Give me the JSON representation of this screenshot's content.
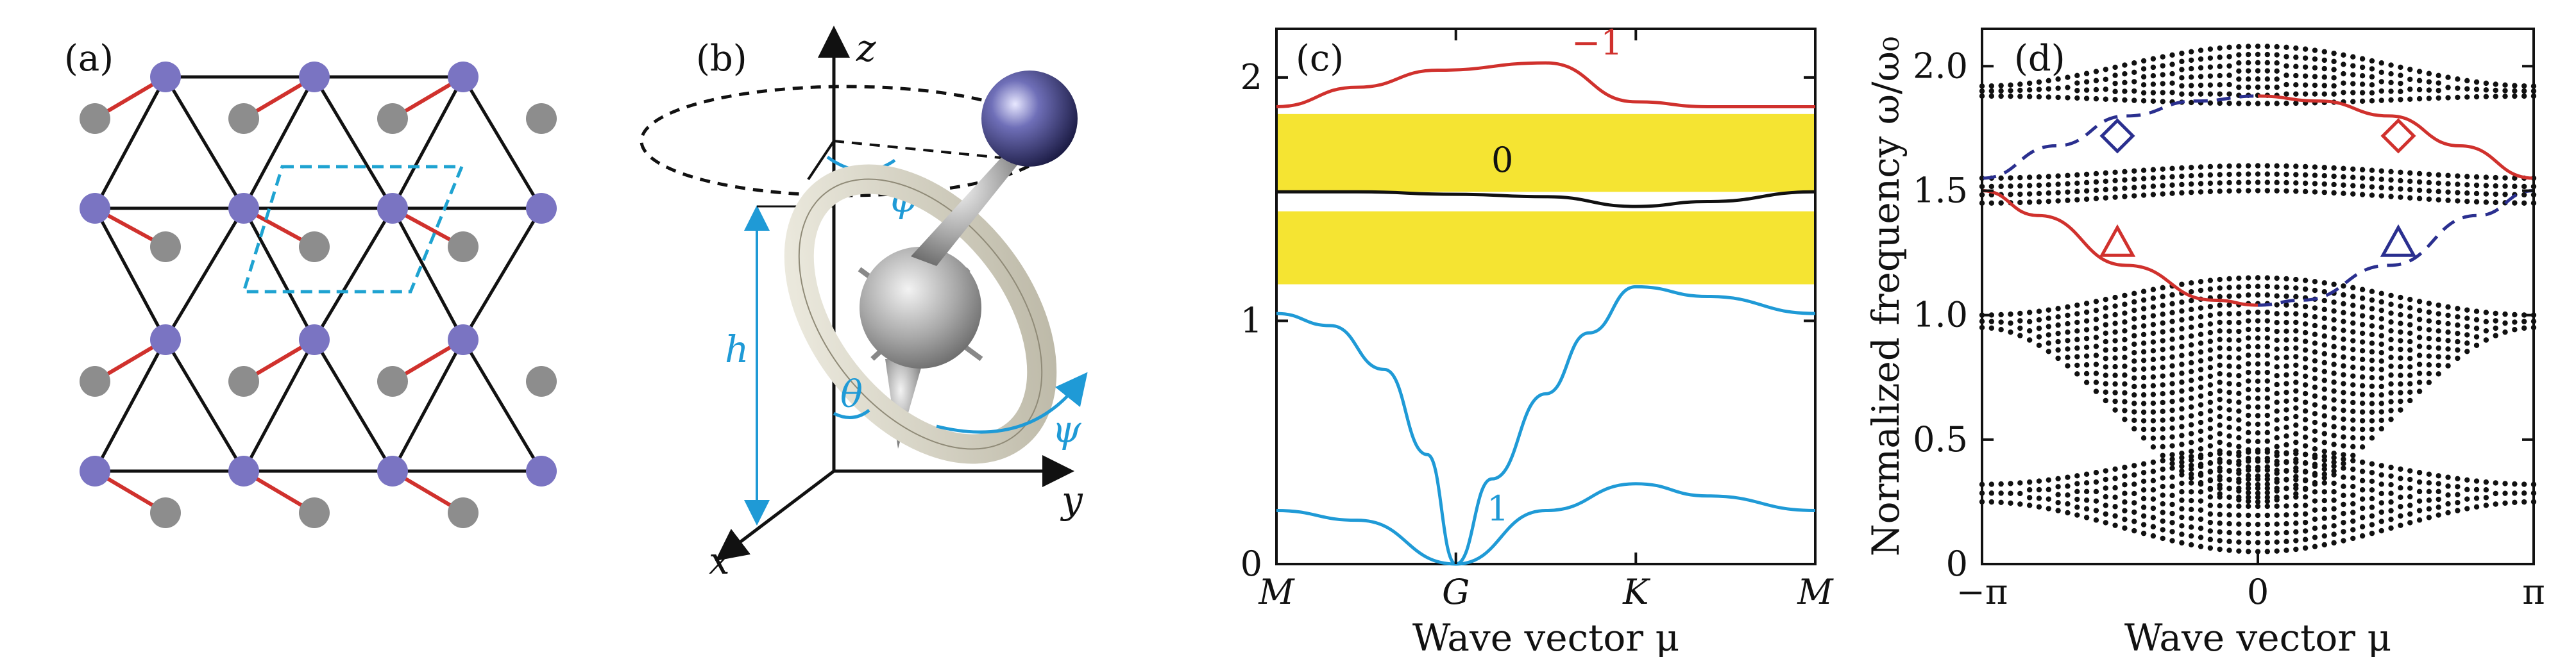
{
  "panels": {
    "a": {
      "label": "(a)"
    },
    "b": {
      "label": "(b)",
      "axis_labels": {
        "z": "z",
        "y": "y",
        "x": "x"
      },
      "angle_labels": {
        "phi": "ϕ",
        "theta": "θ",
        "psi": "ψ"
      },
      "height_label": "h"
    },
    "c": {
      "label": "(c)"
    },
    "d": {
      "label": "(d)"
    }
  },
  "chart_data": [
    {
      "type": "line",
      "panel": "c",
      "xlabel": "Wave vector μ",
      "ylabel": "",
      "x_tick_labels": [
        "M",
        "G",
        "K",
        "M"
      ],
      "y_ticks": [
        0,
        1,
        2
      ],
      "ylim": [
        0,
        2.2
      ],
      "gap_bands": [
        [
          1.15,
          1.45
        ],
        [
          1.53,
          1.85
        ]
      ],
      "colors": {
        "gap": "#f5e432",
        "chern_neg1": "#d0312d",
        "chern_0": "#111111",
        "chern_1": "#1f9ad6"
      },
      "curve_labels": [
        "−1",
        "0",
        "1"
      ],
      "series": [
        {
          "name": "−1",
          "x": [
            0,
            0.15,
            0.3,
            0.5,
            0.667,
            0.8,
            1.0
          ],
          "values": [
            1.88,
            1.96,
            2.03,
            2.06,
            1.9,
            1.88,
            1.88
          ]
        },
        {
          "name": "0",
          "x": [
            0,
            0.15,
            0.333,
            0.5,
            0.667,
            0.8,
            1.0
          ],
          "values": [
            1.53,
            1.53,
            1.52,
            1.51,
            1.47,
            1.49,
            1.53
          ]
        },
        {
          "name": "1",
          "x": [
            0,
            0.1,
            0.2,
            0.28,
            0.333,
            0.4,
            0.5,
            0.58,
            0.667,
            0.8,
            1.0
          ],
          "values": [
            1.03,
            0.98,
            0.8,
            0.45,
            0.0,
            0.35,
            0.7,
            0.95,
            1.14,
            1.1,
            1.03
          ]
        },
        {
          "values_note": "",
          "x": [
            0,
            0.15,
            0.333,
            0.5,
            0.667,
            0.8,
            1.0
          ],
          "values": [
            0.22,
            0.18,
            0.0,
            0.22,
            0.33,
            0.28,
            0.22
          ]
        }
      ]
    },
    {
      "type": "scatter",
      "panel": "d",
      "xlabel": "Wave vector μ",
      "ylabel": "Normalized frequency ω/ω₀",
      "x_tick_labels": [
        "−π",
        "0",
        "π"
      ],
      "y_ticks": [
        0,
        0.5,
        1.0,
        1.5,
        2.0
      ],
      "y_tick_labels": [
        "0",
        "0.5",
        "1.0",
        "1.5",
        "2.0"
      ],
      "ylim": [
        0,
        2.15
      ],
      "bulk_bands": [
        {
          "lower_edge": [
            0.25,
            0.05,
            0.25
          ],
          "upper_edge": [
            0.32,
            0.45,
            0.32
          ]
        },
        {
          "lower_edge": [
            0.95,
            0.25,
            0.95
          ],
          "upper_edge": [
            1.0,
            1.15,
            1.0
          ]
        },
        {
          "lower_edge": [
            1.45,
            1.5,
            1.45
          ],
          "upper_edge": [
            1.55,
            1.6,
            1.55
          ]
        },
        {
          "lower_edge": [
            1.88,
            1.85,
            1.88
          ],
          "upper_edge": [
            1.92,
            2.08,
            1.92
          ]
        }
      ],
      "edge_states": [
        {
          "style": "solid",
          "color": "#d0312d",
          "x": [
            -3.1416,
            -2.5,
            -1.5,
            -0.5,
            0
          ],
          "values": [
            1.5,
            1.4,
            1.2,
            1.06,
            1.04
          ]
        },
        {
          "style": "solid",
          "color": "#d0312d",
          "x": [
            0,
            0.7,
            1.5,
            2.3,
            3.1416
          ],
          "values": [
            1.88,
            1.86,
            1.8,
            1.68,
            1.55
          ]
        },
        {
          "style": "dashed",
          "color": "#2a2f8f",
          "x": [
            -3.1416,
            -2.3,
            -1.5,
            -0.7,
            0
          ],
          "values": [
            1.55,
            1.68,
            1.8,
            1.86,
            1.88
          ]
        },
        {
          "style": "dashed",
          "color": "#2a2f8f",
          "x": [
            0,
            0.5,
            1.5,
            2.5,
            3.1416
          ],
          "values": [
            1.04,
            1.06,
            1.2,
            1.4,
            1.5
          ]
        }
      ],
      "markers": [
        {
          "shape": "diamond",
          "color": "#2a2f8f",
          "x": -1.6,
          "y": 1.72
        },
        {
          "shape": "diamond",
          "color": "#d0312d",
          "x": 1.6,
          "y": 1.72
        },
        {
          "shape": "triangle",
          "color": "#d0312d",
          "x": -1.6,
          "y": 1.29
        },
        {
          "shape": "triangle",
          "color": "#2a2f8f",
          "x": 1.6,
          "y": 1.29
        }
      ]
    }
  ]
}
